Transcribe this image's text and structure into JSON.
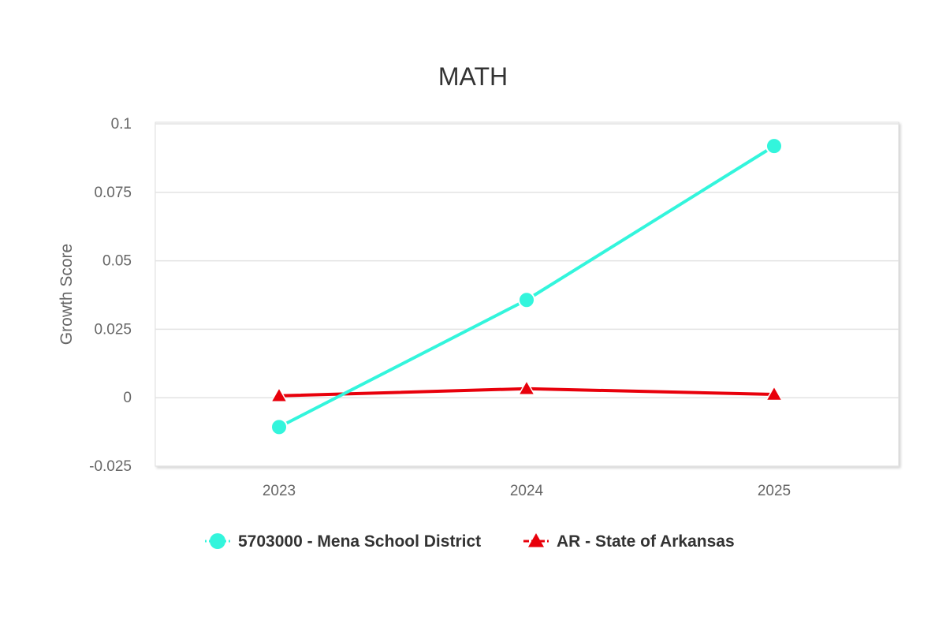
{
  "chart_data": {
    "type": "line",
    "title": "MATH",
    "xlabel": "",
    "ylabel": "Growth Score",
    "categories": [
      "2023",
      "2024",
      "2025"
    ],
    "ylim": [
      -0.025,
      0.1
    ],
    "y_ticks": [
      "0.1",
      "0.075",
      "0.05",
      "0.025",
      "0",
      "-0.025"
    ],
    "y_tick_values": [
      0.1,
      0.075,
      0.05,
      0.025,
      0,
      -0.025
    ],
    "grid": true,
    "legend_position": "bottom-center",
    "series": [
      {
        "name": "5703000 - Mena School District",
        "values": [
          -0.0107,
          0.0357,
          0.0919
        ],
        "color": "#33f5dc",
        "marker": "circle"
      },
      {
        "name": "AR - State of Arkansas",
        "values": [
          0.0007,
          0.0033,
          0.0012
        ],
        "color": "#e8000b",
        "marker": "triangle"
      }
    ]
  }
}
